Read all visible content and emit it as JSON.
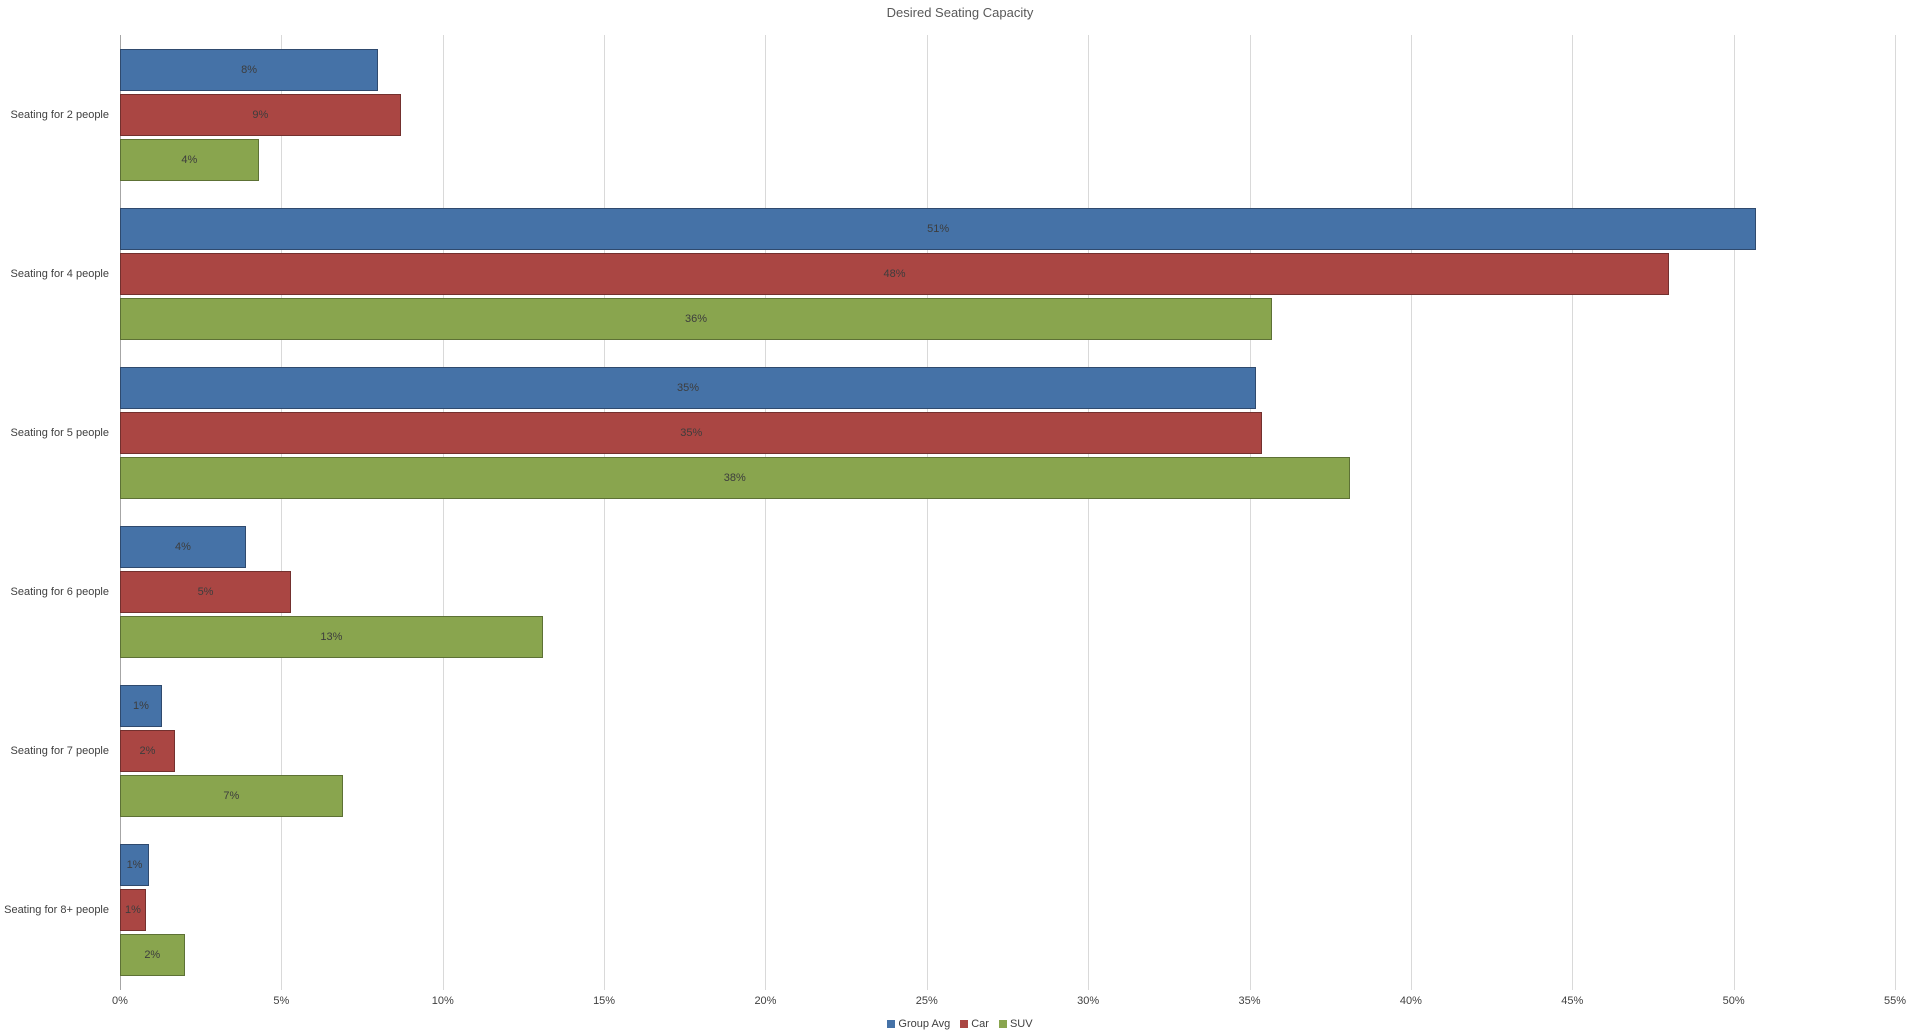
{
  "title": "Desired Seating Capacity",
  "chart_data": {
    "type": "bar",
    "orientation": "horizontal",
    "title": "Desired Seating Capacity",
    "categories": [
      "Seating for 2 people",
      "Seating for 4 people",
      "Seating for 5 people",
      "Seating for 6 people",
      "Seating for 7 people",
      "Seating for 8+ people"
    ],
    "series": [
      {
        "name": "Group Avg",
        "color": "#4572a7",
        "border_color": "#2f4a6e",
        "values": [
          8.0,
          50.7,
          35.2,
          3.9,
          1.3,
          0.9
        ],
        "labels": [
          "8%",
          "51%",
          "35%",
          "4%",
          "1%",
          "1%"
        ]
      },
      {
        "name": "Car",
        "color": "#aa4643",
        "border_color": "#73302e",
        "values": [
          8.7,
          48.0,
          35.4,
          5.3,
          1.7,
          0.8
        ],
        "labels": [
          "9%",
          "48%",
          "35%",
          "5%",
          "2%",
          "1%"
        ]
      },
      {
        "name": "SUV",
        "color": "#89a54e",
        "border_color": "#5d7135",
        "values": [
          4.3,
          35.7,
          38.1,
          13.1,
          6.9,
          2.0
        ],
        "labels": [
          "4%",
          "36%",
          "38%",
          "13%",
          "7%",
          "2%"
        ]
      }
    ],
    "xlim": [
      0,
      55
    ],
    "tick_values": [
      0,
      5,
      10,
      15,
      20,
      25,
      30,
      35,
      40,
      45,
      50,
      55
    ],
    "tick_labels": [
      "0%",
      "5%",
      "10%",
      "15%",
      "20%",
      "25%",
      "30%",
      "35%",
      "40%",
      "45%",
      "50%",
      "55%"
    ],
    "grid": true,
    "legend_position": "bottom"
  }
}
